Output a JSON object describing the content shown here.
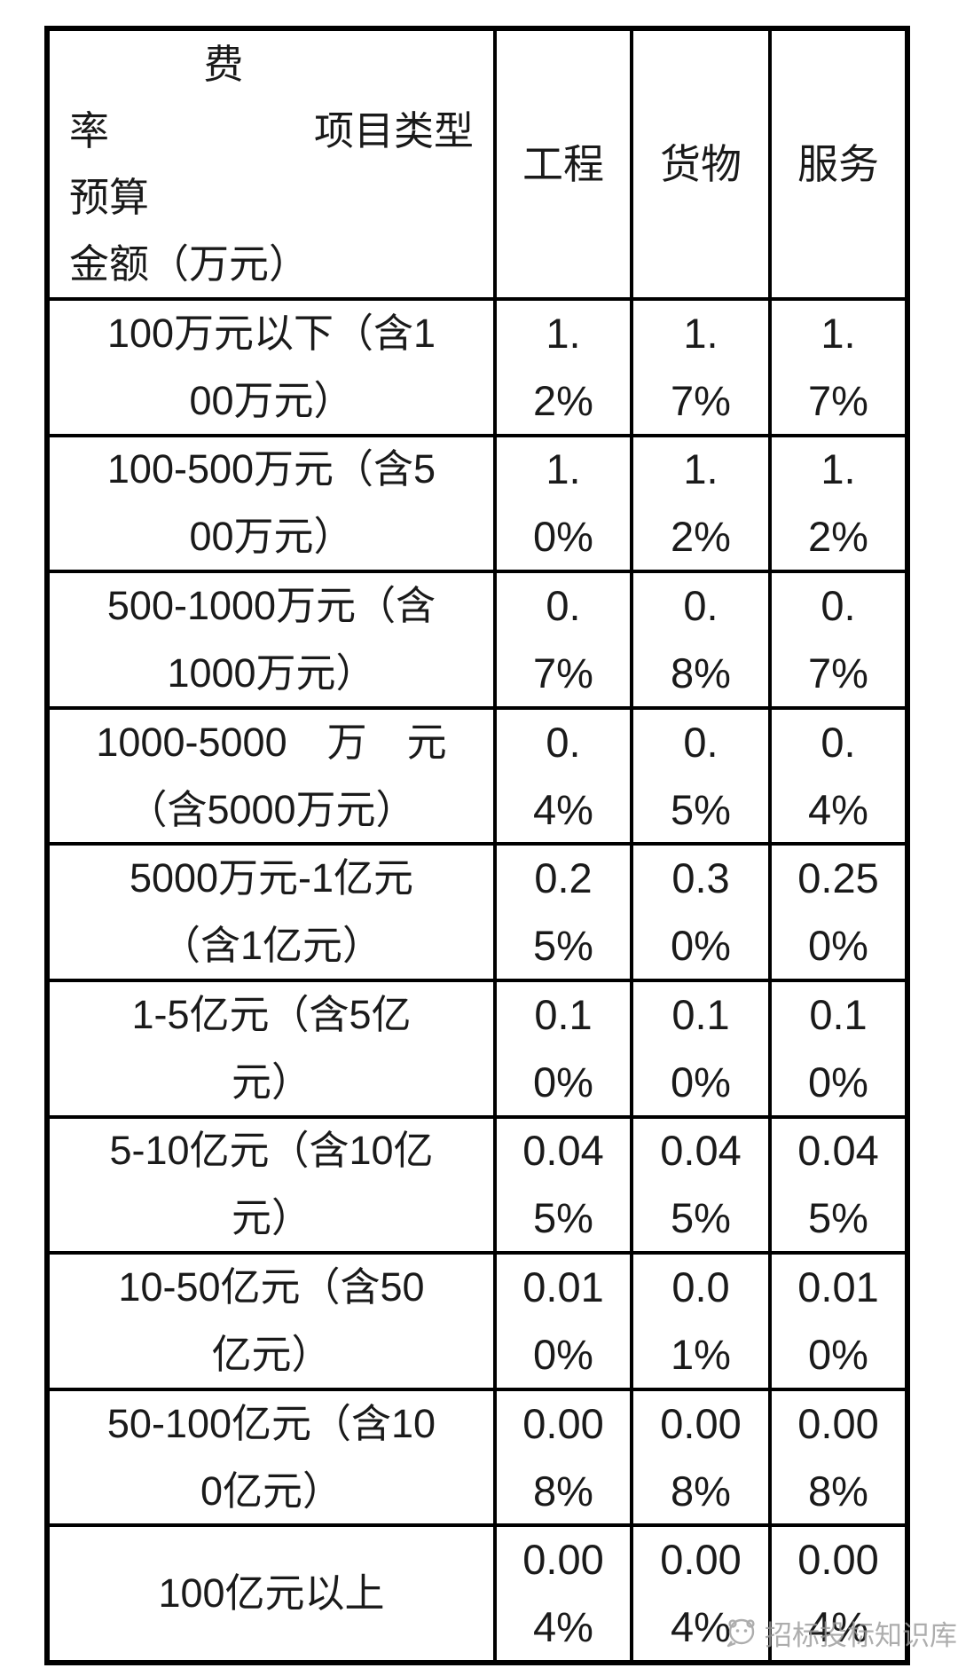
{
  "table": {
    "header": {
      "legend": {
        "line1_fee": "费",
        "line2_left": "率",
        "line2_right": "项目类型",
        "line3": "预算",
        "line4": "金额（万元）"
      },
      "columns": [
        "工程",
        "货物",
        "服务"
      ]
    },
    "rows": [
      {
        "label": "100万元以下（含100万元）",
        "label_lines": [
          "100万元以下（含1",
          "00万元）"
        ],
        "rates": [
          {
            "value": "1.2%",
            "lines": [
              "1.",
              "2%"
            ]
          },
          {
            "value": "1.7%",
            "lines": [
              "1.",
              "7%"
            ]
          },
          {
            "value": "1.7%",
            "lines": [
              "1.",
              "7%"
            ]
          }
        ]
      },
      {
        "label": "100-500万元（含500万元）",
        "label_lines": [
          "100-500万元（含5",
          "00万元）"
        ],
        "rates": [
          {
            "value": "1.0%",
            "lines": [
              "1.",
              "0%"
            ]
          },
          {
            "value": "1.2%",
            "lines": [
              "1.",
              "2%"
            ]
          },
          {
            "value": "1.2%",
            "lines": [
              "1.",
              "2%"
            ]
          }
        ]
      },
      {
        "label": "500-1000万元（含1000万元）",
        "label_lines": [
          "500-1000万元（含",
          "1000万元）"
        ],
        "rates": [
          {
            "value": "0.7%",
            "lines": [
              "0.",
              "7%"
            ]
          },
          {
            "value": "0.8%",
            "lines": [
              "0.",
              "8%"
            ]
          },
          {
            "value": "0.7%",
            "lines": [
              "0.",
              "7%"
            ]
          }
        ]
      },
      {
        "label": "1000-5000万元（含5000万元）",
        "label_lines": [
          "1000-5000　万　元",
          "（含5000万元）"
        ],
        "rates": [
          {
            "value": "0.4%",
            "lines": [
              "0.",
              "4%"
            ]
          },
          {
            "value": "0.5%",
            "lines": [
              "0.",
              "5%"
            ]
          },
          {
            "value": "0.4%",
            "lines": [
              "0.",
              "4%"
            ]
          }
        ]
      },
      {
        "label": "5000万元-1亿元（含1亿元）",
        "label_lines": [
          "5000万元-1亿元",
          "（含1亿元）"
        ],
        "rates": [
          {
            "value": "0.25%",
            "lines": [
              "0.2",
              "5%"
            ]
          },
          {
            "value": "0.30%",
            "lines": [
              "0.3",
              "0%"
            ]
          },
          {
            "value": "0.250%",
            "lines": [
              "0.25",
              "0%"
            ]
          }
        ]
      },
      {
        "label": "1-5亿元（含5亿元）",
        "label_lines": [
          "1-5亿元（含5亿",
          "元）"
        ],
        "rates": [
          {
            "value": "0.10%",
            "lines": [
              "0.1",
              "0%"
            ]
          },
          {
            "value": "0.10%",
            "lines": [
              "0.1",
              "0%"
            ]
          },
          {
            "value": "0.10%",
            "lines": [
              "0.1",
              "0%"
            ]
          }
        ]
      },
      {
        "label": "5-10亿元（含10亿元）",
        "label_lines": [
          "5-10亿元（含10亿",
          "元）"
        ],
        "rates": [
          {
            "value": "0.045%",
            "lines": [
              "0.04",
              "5%"
            ]
          },
          {
            "value": "0.045%",
            "lines": [
              "0.04",
              "5%"
            ]
          },
          {
            "value": "0.045%",
            "lines": [
              "0.04",
              "5%"
            ]
          }
        ]
      },
      {
        "label": "10-50亿元（含50亿元）",
        "label_lines": [
          "10-50亿元（含50",
          "亿元）"
        ],
        "rates": [
          {
            "value": "0.010%",
            "lines": [
              "0.01",
              "0%"
            ]
          },
          {
            "value": "0.01%",
            "lines": [
              "0.0",
              "1%"
            ]
          },
          {
            "value": "0.010%",
            "lines": [
              "0.01",
              "0%"
            ]
          }
        ]
      },
      {
        "label": "50-100亿元（含100亿元）",
        "label_lines": [
          "50-100亿元（含10",
          "0亿元）"
        ],
        "rates": [
          {
            "value": "0.008%",
            "lines": [
              "0.00",
              "8%"
            ]
          },
          {
            "value": "0.008%",
            "lines": [
              "0.00",
              "8%"
            ]
          },
          {
            "value": "0.008%",
            "lines": [
              "0.00",
              "8%"
            ]
          }
        ]
      },
      {
        "label": "100亿元以上",
        "label_lines": [
          "100亿元以上"
        ],
        "rates": [
          {
            "value": "0.004%",
            "lines": [
              "0.00",
              "4%"
            ]
          },
          {
            "value": "0.004%",
            "lines": [
              "0.00",
              "4%"
            ]
          },
          {
            "value": "0.004%",
            "lines": [
              "0.00",
              "4%"
            ]
          }
        ]
      }
    ]
  },
  "watermark": {
    "text": "招标投标知识库"
  }
}
